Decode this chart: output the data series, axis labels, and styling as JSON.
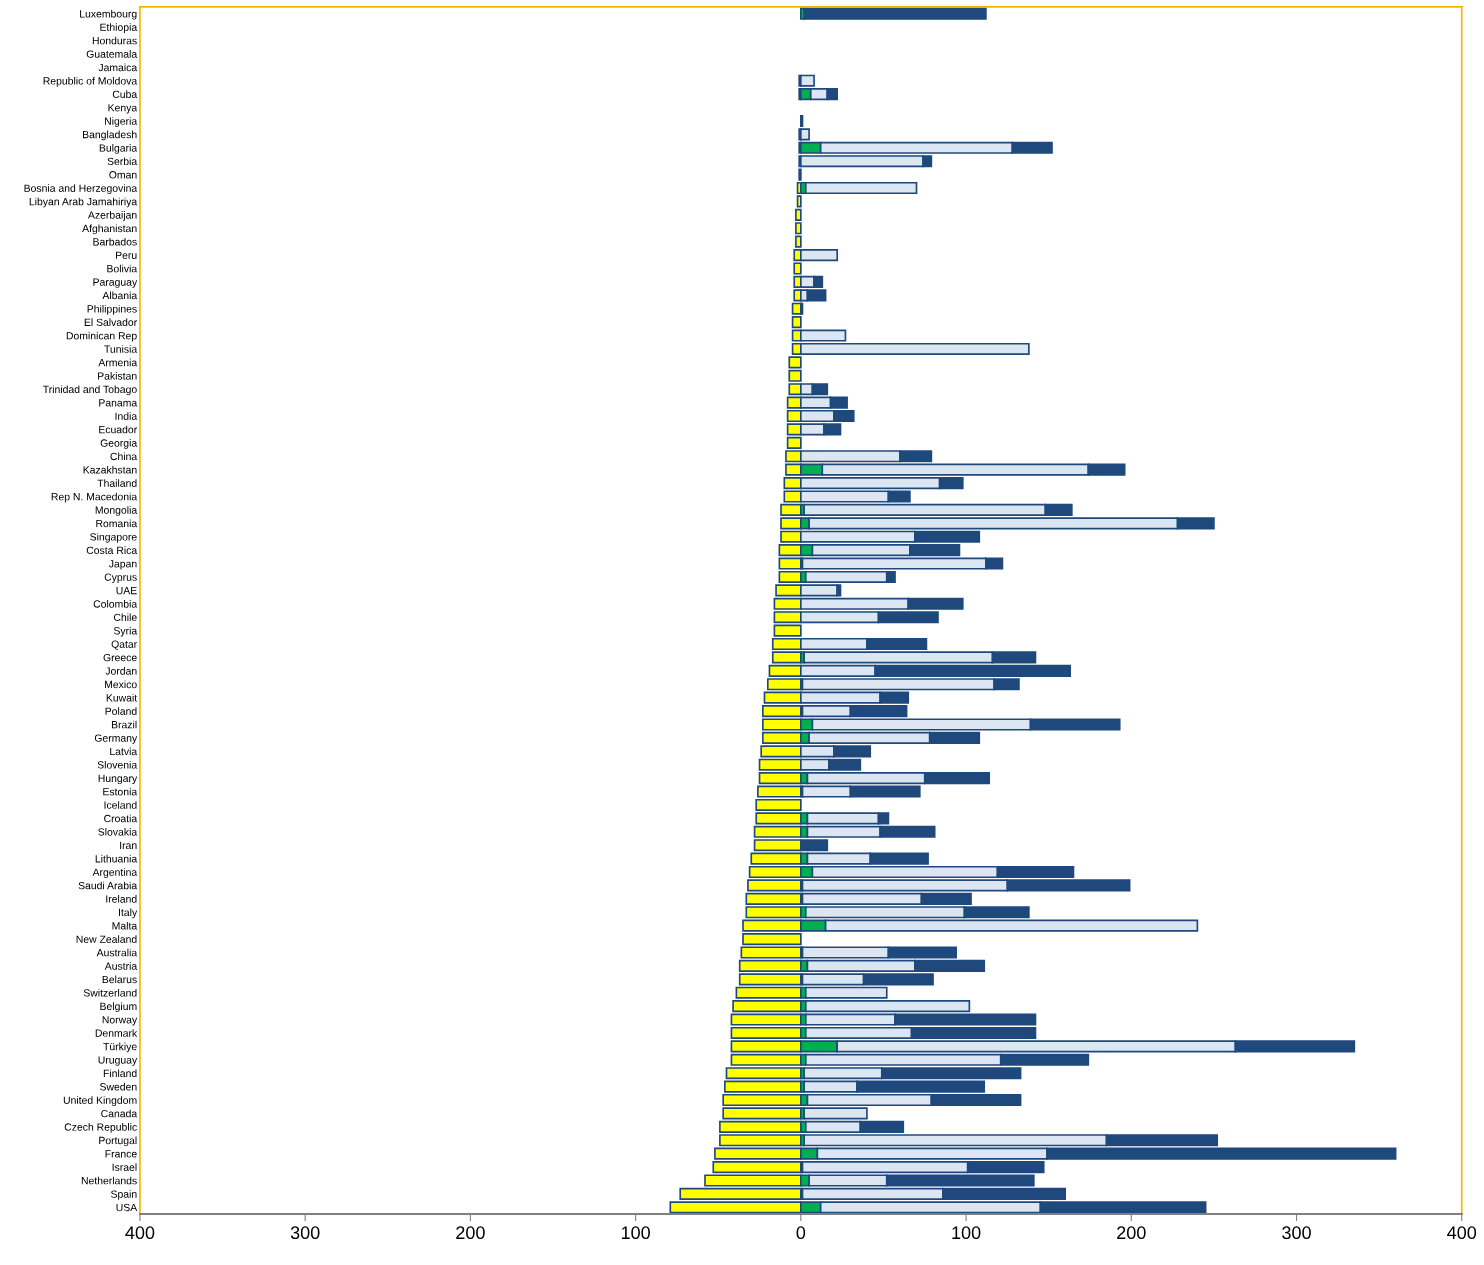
{
  "chart_data": {
    "type": "bar",
    "orientation": "horizontal",
    "stacked": true,
    "categories": [
      "Luxembourg",
      "Ethiopia",
      "Honduras",
      "Guatemala",
      "Jamaica",
      "Republic of Moldova",
      "Cuba",
      "Kenya",
      "Nigeria",
      "Bangladesh",
      "Bulgaria",
      "Serbia",
      "Oman",
      "Bosnia and Herzegovina",
      "Libyan Arab Jamahiriya",
      "Azerbaijan",
      "Afghanistan",
      "Barbados",
      "Peru",
      "Bolivia",
      "Paraguay",
      "Albania",
      "Philippines",
      "El Salvador",
      "Dominican Rep",
      "Tunisia",
      "Armenia",
      "Pakistan",
      "Trinidad and Tobago",
      "Panama",
      "India",
      "Ecuador",
      "Georgia",
      "China",
      "Kazakhstan",
      "Thailand",
      "Rep N. Macedonia",
      "Mongolia",
      "Romania",
      "Singapore",
      "Costa Rica",
      "Japan",
      "Cyprus",
      "UAE",
      "Colombia",
      "Chile",
      "Syria",
      "Qatar",
      "Greece",
      "Jordan",
      "Mexico",
      "Kuwait",
      "Poland",
      "Brazil",
      "Germany",
      "Latvia",
      "Slovenia",
      "Hungary",
      "Estonia",
      "Iceland",
      "Croatia",
      "Slovakia",
      "Iran",
      "Lithuania",
      "Argentina",
      "Saudi Arabia",
      "Ireland",
      "Italy",
      "Malta",
      "New Zealand",
      "Australia",
      "Austria",
      "Belarus",
      "Switzerland",
      "Belgium",
      "Norway",
      "Denmark",
      "Türkiye",
      "Uruguay",
      "Finland",
      "Sweden",
      "United Kingdom",
      "Canada",
      "Czech Republic",
      "Portugal",
      "France",
      "Israel",
      "Netherlands",
      "Spain",
      "USA"
    ],
    "series": [
      {
        "color": "#ffff00",
        "values": [
          0,
          0,
          0,
          0,
          0,
          -1,
          -1,
          0,
          0,
          -1,
          -1,
          -1,
          -1,
          -2,
          -2,
          -3,
          -3,
          -3,
          -4,
          -4,
          -4,
          -4,
          -5,
          -5,
          -5,
          -5,
          -7,
          -7,
          -7,
          -8,
          -8,
          -8,
          -8,
          -9,
          -9,
          -10,
          -10,
          -12,
          -12,
          -12,
          -13,
          -13,
          -13,
          -15,
          -16,
          -16,
          -16,
          -17,
          -17,
          -19,
          -20,
          -22,
          -23,
          -23,
          -23,
          -24,
          -25,
          -25,
          -26,
          -27,
          -27,
          -28,
          -28,
          -30,
          -31,
          -32,
          -33,
          -33,
          -35,
          -35,
          -36,
          -37,
          -37,
          -39,
          -41,
          -42,
          -42,
          -42,
          -42,
          -45,
          -46,
          -47,
          -47,
          -49,
          -49,
          -52,
          -53,
          -58,
          -73,
          -79
        ]
      },
      {
        "color": "#00b050",
        "values": [
          2,
          0,
          0,
          0,
          0,
          0,
          6,
          0,
          0,
          0,
          12,
          0,
          0,
          3,
          0,
          0,
          0,
          0,
          0,
          0,
          0,
          0,
          0,
          0,
          0,
          0,
          0,
          0,
          0,
          0,
          0,
          0,
          0,
          0,
          13,
          0,
          0,
          2,
          5,
          0,
          7,
          1,
          3,
          0,
          0,
          0,
          0,
          0,
          2,
          0,
          1,
          0,
          1,
          7,
          5,
          0,
          0,
          4,
          1,
          0,
          4,
          4,
          0,
          4,
          7,
          1,
          1,
          3,
          15,
          0,
          1,
          4,
          1,
          3,
          3,
          3,
          3,
          22,
          3,
          2,
          2,
          4,
          2,
          3,
          2,
          10,
          1,
          5,
          1,
          12
        ]
      },
      {
        "color": "#dce6f2",
        "values": [
          0,
          0,
          0,
          0,
          0,
          8,
          10,
          0,
          1,
          5,
          116,
          74,
          0,
          67,
          0,
          0,
          0,
          0,
          22,
          0,
          8,
          4,
          1,
          0,
          27,
          138,
          0,
          0,
          7,
          18,
          20,
          14,
          0,
          60,
          161,
          84,
          53,
          146,
          223,
          69,
          59,
          111,
          49,
          22,
          65,
          47,
          0,
          40,
          114,
          45,
          116,
          48,
          29,
          132,
          73,
          20,
          17,
          71,
          29,
          0,
          43,
          44,
          0,
          38,
          112,
          124,
          72,
          96,
          225,
          0,
          52,
          65,
          37,
          49,
          99,
          54,
          64,
          241,
          118,
          47,
          32,
          75,
          38,
          33,
          183,
          139,
          100,
          47,
          85,
          133
        ]
      },
      {
        "color": "#1f497d",
        "values": [
          110,
          0,
          0,
          0,
          0,
          0,
          6,
          0,
          0,
          0,
          24,
          5,
          0,
          0,
          0,
          0,
          0,
          0,
          0,
          0,
          5,
          11,
          0,
          0,
          0,
          0,
          0,
          0,
          9,
          10,
          12,
          10,
          0,
          19,
          22,
          14,
          13,
          16,
          22,
          39,
          30,
          10,
          5,
          2,
          33,
          36,
          0,
          36,
          26,
          118,
          15,
          17,
          34,
          54,
          30,
          22,
          19,
          39,
          42,
          0,
          6,
          33,
          16,
          35,
          46,
          74,
          30,
          39,
          0,
          0,
          41,
          42,
          42,
          0,
          0,
          85,
          75,
          72,
          53,
          84,
          77,
          54,
          0,
          26,
          67,
          211,
          46,
          89,
          74,
          100
        ]
      }
    ],
    "xlim": [
      -400,
      400
    ],
    "xticks": [
      {
        "value": -400,
        "label": "400"
      },
      {
        "value": -300,
        "label": "300"
      },
      {
        "value": -200,
        "label": "200"
      },
      {
        "value": -100,
        "label": "100"
      },
      0,
      100,
      200,
      300,
      400
    ],
    "grid": false
  }
}
